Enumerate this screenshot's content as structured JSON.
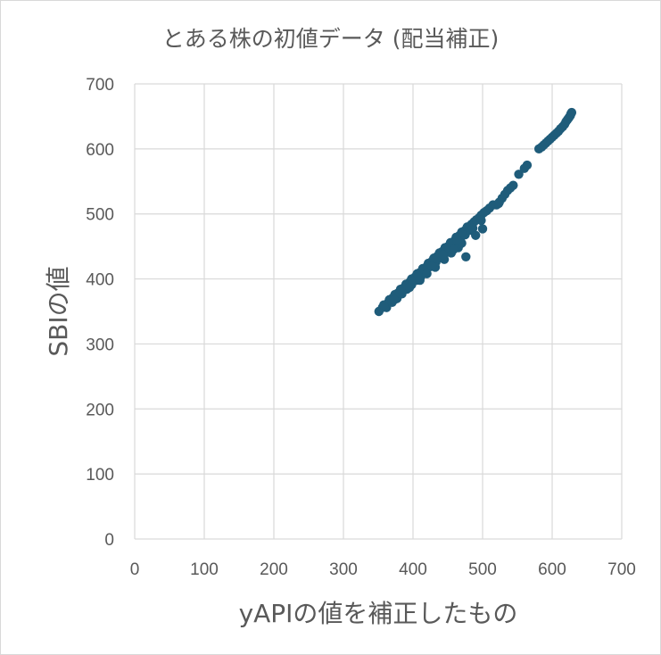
{
  "chart_data": {
    "type": "scatter",
    "title": "とある株の初値データ (配当補正)",
    "xlabel": "yAPIの値を補正したもの",
    "ylabel": "SBIの値",
    "xlim": [
      0,
      700
    ],
    "ylim": [
      0,
      700
    ],
    "x_ticks": [
      "0",
      "100",
      "200",
      "300",
      "400",
      "500",
      "600",
      "700"
    ],
    "y_ticks": [
      "0",
      "100",
      "200",
      "300",
      "400",
      "500",
      "600",
      "700"
    ],
    "grid": true,
    "legend": "none",
    "marker_color": "#1f5c7a",
    "series": [
      {
        "points": [
          [
            351,
            350
          ],
          [
            356,
            356
          ],
          [
            360,
            360
          ],
          [
            364,
            363
          ],
          [
            367,
            367
          ],
          [
            371,
            371
          ],
          [
            375,
            375
          ],
          [
            378,
            378
          ],
          [
            382,
            381
          ],
          [
            385,
            385
          ],
          [
            389,
            389
          ],
          [
            393,
            392
          ],
          [
            396,
            396
          ],
          [
            400,
            400
          ],
          [
            403,
            403
          ],
          [
            407,
            406
          ],
          [
            410,
            410
          ],
          [
            414,
            414
          ],
          [
            418,
            417
          ],
          [
            421,
            421
          ],
          [
            425,
            425
          ],
          [
            428,
            428
          ],
          [
            432,
            431
          ],
          [
            435,
            435
          ],
          [
            439,
            439
          ],
          [
            442,
            442
          ],
          [
            446,
            445
          ],
          [
            449,
            449
          ],
          [
            453,
            453
          ],
          [
            456,
            456
          ],
          [
            460,
            459
          ],
          [
            463,
            463
          ],
          [
            467,
            467
          ],
          [
            470,
            470
          ],
          [
            474,
            474
          ],
          [
            477,
            477
          ],
          [
            481,
            480
          ],
          [
            484,
            484
          ],
          [
            488,
            488
          ],
          [
            491,
            491
          ],
          [
            495,
            494
          ],
          [
            498,
            498
          ],
          [
            502,
            502
          ],
          [
            506,
            505
          ],
          [
            510,
            509
          ],
          [
            515,
            514
          ],
          [
            362,
            356
          ],
          [
            370,
            364
          ],
          [
            377,
            370
          ],
          [
            384,
            377
          ],
          [
            391,
            384
          ],
          [
            398,
            391
          ],
          [
            405,
            398
          ],
          [
            412,
            405
          ],
          [
            419,
            412
          ],
          [
            426,
            419
          ],
          [
            433,
            426
          ],
          [
            440,
            433
          ],
          [
            447,
            440
          ],
          [
            454,
            447
          ],
          [
            461,
            454
          ],
          [
            468,
            461
          ],
          [
            475,
            468
          ],
          [
            482,
            475
          ],
          [
            358,
            360
          ],
          [
            366,
            368
          ],
          [
            374,
            376
          ],
          [
            382,
            384
          ],
          [
            390,
            392
          ],
          [
            398,
            400
          ],
          [
            406,
            408
          ],
          [
            414,
            416
          ],
          [
            422,
            424
          ],
          [
            430,
            432
          ],
          [
            438,
            440
          ],
          [
            446,
            448
          ],
          [
            454,
            456
          ],
          [
            462,
            464
          ],
          [
            470,
            472
          ],
          [
            478,
            480
          ],
          [
            373,
            368
          ],
          [
            395,
            387
          ],
          [
            410,
            398
          ],
          [
            420,
            408
          ],
          [
            432,
            418
          ],
          [
            445,
            430
          ],
          [
            455,
            440
          ],
          [
            465,
            448
          ],
          [
            470,
            455
          ],
          [
            427,
            420
          ],
          [
            443,
            437
          ],
          [
            452,
            447
          ],
          [
            458,
            445
          ],
          [
            463,
            460
          ],
          [
            486,
            478
          ],
          [
            498,
            490
          ],
          [
            476,
            434
          ],
          [
            490,
            467
          ],
          [
            500,
            477
          ],
          [
            520,
            514
          ],
          [
            524,
            518
          ],
          [
            528,
            524
          ],
          [
            532,
            530
          ],
          [
            536,
            536
          ],
          [
            540,
            540
          ],
          [
            544,
            544
          ],
          [
            523,
            516
          ],
          [
            552,
            561
          ],
          [
            560,
            570
          ],
          [
            564,
            575
          ],
          [
            581,
            600
          ],
          [
            585,
            603
          ],
          [
            588,
            606
          ],
          [
            591,
            609
          ],
          [
            594,
            612
          ],
          [
            597,
            615
          ],
          [
            600,
            618
          ],
          [
            603,
            621
          ],
          [
            606,
            624
          ],
          [
            609,
            627
          ],
          [
            612,
            631
          ],
          [
            615,
            634
          ],
          [
            618,
            638
          ],
          [
            620,
            642
          ],
          [
            622,
            645
          ],
          [
            624,
            648
          ],
          [
            626,
            651
          ],
          [
            627,
            654
          ],
          [
            628,
            656
          ]
        ]
      }
    ]
  }
}
